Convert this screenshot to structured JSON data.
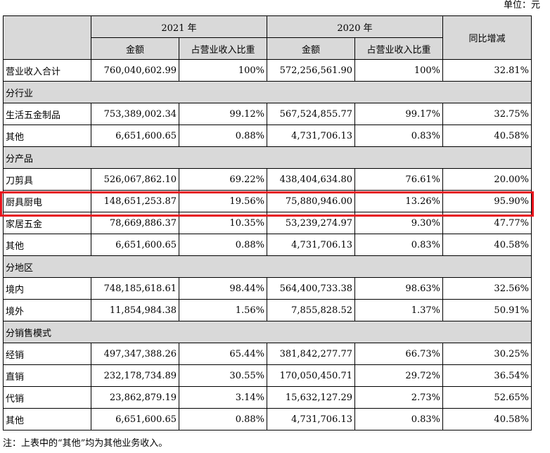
{
  "unit_label": "单位：元",
  "header": {
    "year_2021": "2021 年",
    "year_2020": "2020 年",
    "amount": "金额",
    "share": "占营业收入比重",
    "yoy": "同比增减"
  },
  "rows": [
    {
      "type": "data",
      "label": "营业收入合计",
      "a2021": "760,040,602.99",
      "s2021": "100%",
      "a2020": "572,256,561.90",
      "s2020": "100%",
      "yoy": "32.81%"
    },
    {
      "type": "section",
      "label": "分行业"
    },
    {
      "type": "data",
      "label": "生活五金制品",
      "a2021": "753,389,002.34",
      "s2021": "99.12%",
      "a2020": "567,524,855.77",
      "s2020": "99.17%",
      "yoy": "32.75%"
    },
    {
      "type": "data",
      "label": "其他",
      "a2021": "6,651,600.65",
      "s2021": "0.88%",
      "a2020": "4,731,706.13",
      "s2020": "0.83%",
      "yoy": "40.58%"
    },
    {
      "type": "section",
      "label": "分产品"
    },
    {
      "type": "data",
      "label": "刀剪具",
      "a2021": "526,067,862.10",
      "s2021": "69.22%",
      "a2020": "438,404,634.80",
      "s2020": "76.61%",
      "yoy": "20.00%"
    },
    {
      "type": "data",
      "label": "厨具厨电",
      "a2021": "148,651,253.87",
      "s2021": "19.56%",
      "a2020": "75,880,946.00",
      "s2020": "13.26%",
      "yoy": "95.90%"
    },
    {
      "type": "data",
      "label": "家居五金",
      "a2021": "78,669,886.37",
      "s2021": "10.35%",
      "a2020": "53,239,274.97",
      "s2020": "9.30%",
      "yoy": "47.77%"
    },
    {
      "type": "data",
      "label": "其他",
      "a2021": "6,651,600.65",
      "s2021": "0.88%",
      "a2020": "4,731,706.13",
      "s2020": "0.83%",
      "yoy": "40.58%"
    },
    {
      "type": "section",
      "label": "分地区"
    },
    {
      "type": "data",
      "label": "境内",
      "a2021": "748,185,618.61",
      "s2021": "98.44%",
      "a2020": "564,400,733.38",
      "s2020": "98.63%",
      "yoy": "32.56%"
    },
    {
      "type": "data",
      "label": "境外",
      "a2021": "11,854,984.38",
      "s2021": "1.56%",
      "a2020": "7,855,828.52",
      "s2020": "1.37%",
      "yoy": "50.91%"
    },
    {
      "type": "section",
      "label": "分销售模式"
    },
    {
      "type": "data",
      "label": "经销",
      "a2021": "497,347,388.26",
      "s2021": "65.44%",
      "a2020": "381,842,277.77",
      "s2020": "66.73%",
      "yoy": "30.25%"
    },
    {
      "type": "data",
      "label": "直销",
      "a2021": "232,178,734.89",
      "s2021": "30.55%",
      "a2020": "170,050,450.71",
      "s2020": "29.72%",
      "yoy": "36.54%"
    },
    {
      "type": "data",
      "label": "代销",
      "a2021": "23,862,879.19",
      "s2021": "3.14%",
      "a2020": "15,632,127.29",
      "s2020": "2.73%",
      "yoy": "52.65%"
    },
    {
      "type": "data",
      "label": "其他",
      "a2021": "6,651,600.65",
      "s2021": "0.88%",
      "a2020": "4,731,706.13",
      "s2020": "0.83%",
      "yoy": "40.58%"
    }
  ],
  "note": "注：上表中的“其他”均为其他业务收入。",
  "highlight_color": "#e8141c",
  "section_bg": "#d9d9d9"
}
